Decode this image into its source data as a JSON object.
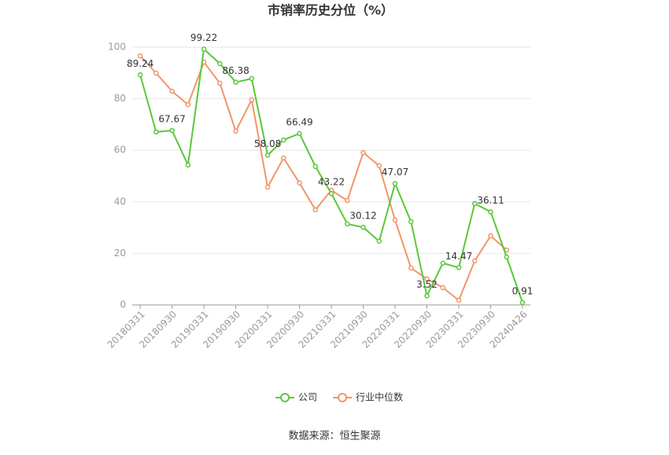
{
  "chart_data": {
    "type": "line",
    "title": "市销率历史分位（%）",
    "source": "数据来源：恒生聚源",
    "categories": [
      "20180331",
      null,
      "20180930",
      null,
      "20190331",
      null,
      "20190930",
      null,
      "20200331",
      null,
      "20200930",
      null,
      "20210331",
      null,
      "20210930",
      null,
      "20220331",
      null,
      "20220930",
      null,
      "20230331",
      null,
      "20230930",
      null,
      "20240426"
    ],
    "series": [
      {
        "name": "公司",
        "color": "#5ac83a",
        "values": [
          89.24,
          67.1,
          67.67,
          54.3,
          99.22,
          93.6,
          86.38,
          87.8,
          58.08,
          64.0,
          66.49,
          53.7,
          43.22,
          31.4,
          30.12,
          24.7,
          47.07,
          32.3,
          3.52,
          16.2,
          14.47,
          39.3,
          36.11,
          18.6,
          0.91
        ]
      },
      {
        "name": "行业中位数",
        "color": "#f0956a",
        "values": [
          96.6,
          89.9,
          82.9,
          77.7,
          94.2,
          86.0,
          67.4,
          79.6,
          45.7,
          57.0,
          47.3,
          36.9,
          44.5,
          40.5,
          59.1,
          54.0,
          32.9,
          14.3,
          10.1,
          6.7,
          1.8,
          17.1,
          26.8,
          21.3,
          null
        ]
      }
    ],
    "ylim": [
      0,
      100
    ],
    "yticks": [
      0,
      20,
      40,
      60,
      80,
      100
    ],
    "grid": true,
    "legend": "bottom"
  }
}
